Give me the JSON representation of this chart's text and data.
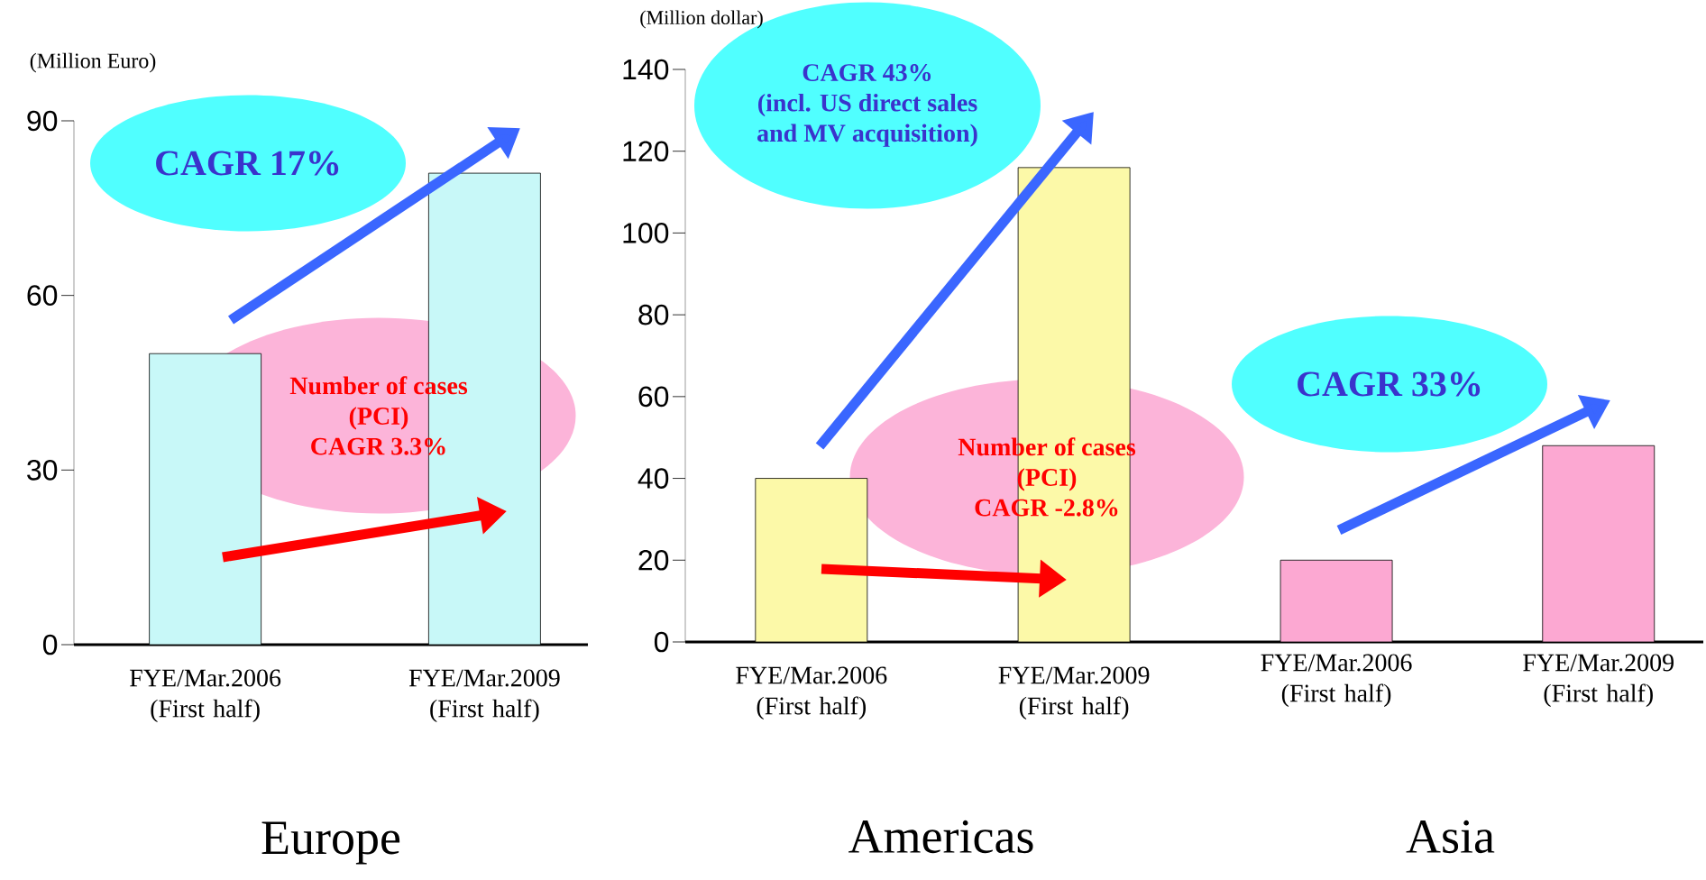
{
  "chart_data": [
    {
      "type": "bar",
      "ylabel": "(Million Euro)",
      "xlabel": "Europe",
      "categories": [
        "FYE/Mar.2006 (First half)",
        "FYE/Mar.2009 (First half)"
      ],
      "values": [
        50,
        81
      ],
      "color": "#c8f8f8",
      "ylim": [
        0,
        90
      ],
      "yticks": [
        0,
        30,
        60,
        90
      ],
      "annotations": [
        "CAGR 17%",
        "Number of cases",
        "(PCI)",
        "CAGR 3.3%"
      ]
    },
    {
      "type": "bar",
      "ylabel": "(Million dollar)",
      "xlabel": "Americas",
      "categories": [
        "FYE/Mar.2006 (First half)",
        "FYE/Mar.2009 (First half)"
      ],
      "values": [
        40,
        116
      ],
      "color": "#fcf9a8",
      "ylim": [
        0,
        140
      ],
      "yticks": [
        0,
        20,
        40,
        60,
        80,
        100,
        120,
        140
      ],
      "annotations": [
        "CAGR 43%",
        "(incl. US direct sales",
        "and MV acquisition)",
        "Number of cases",
        "(PCI)",
        "CAGR -2.8%"
      ]
    },
    {
      "type": "bar",
      "xlabel": "Asia",
      "categories": [
        "FYE/Mar.2006 (First half)",
        "FYE/Mar.2009 (First half)"
      ],
      "values": [
        20,
        48
      ],
      "color": "#fca8d2",
      "ylim": [
        0,
        140
      ],
      "tick_labels": "x",
      "annotations": [
        "CAGR 33%"
      ]
    }
  ]
}
